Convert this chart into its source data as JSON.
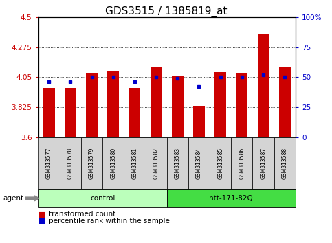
{
  "title": "GDS3515 / 1385819_at",
  "samples": [
    "GSM313577",
    "GSM313578",
    "GSM313579",
    "GSM313580",
    "GSM313581",
    "GSM313582",
    "GSM313583",
    "GSM313584",
    "GSM313585",
    "GSM313586",
    "GSM313587",
    "GSM313588"
  ],
  "transformed_count": [
    3.97,
    3.97,
    4.08,
    4.1,
    3.97,
    4.13,
    4.06,
    3.83,
    4.09,
    4.08,
    4.37,
    4.13
  ],
  "percentile_rank": [
    46,
    46,
    50,
    50,
    46,
    50,
    49,
    42,
    50,
    50,
    52,
    50
  ],
  "groups": [
    {
      "label": "control",
      "start": 0,
      "end": 6,
      "color": "#bbffbb"
    },
    {
      "label": "htt-171-82Q",
      "start": 6,
      "end": 12,
      "color": "#44dd44"
    }
  ],
  "y_min": 3.6,
  "y_max": 4.5,
  "y_ticks": [
    3.6,
    3.825,
    4.05,
    4.275,
    4.5
  ],
  "y_tick_labels": [
    "3.6",
    "3.825",
    "4.05",
    "4.275",
    "4.5"
  ],
  "right_y_ticks": [
    0,
    25,
    50,
    75,
    100
  ],
  "right_y_labels": [
    "0",
    "25",
    "50",
    "75",
    "100%"
  ],
  "bar_color": "#cc0000",
  "dot_color": "#0000cc",
  "bar_width": 0.55,
  "background_color": "#ffffff",
  "title_fontsize": 11,
  "tick_label_color_left": "#cc0000",
  "tick_label_color_right": "#0000cc",
  "agent_label": "agent",
  "legend_entries": [
    "transformed count",
    "percentile rank within the sample"
  ]
}
